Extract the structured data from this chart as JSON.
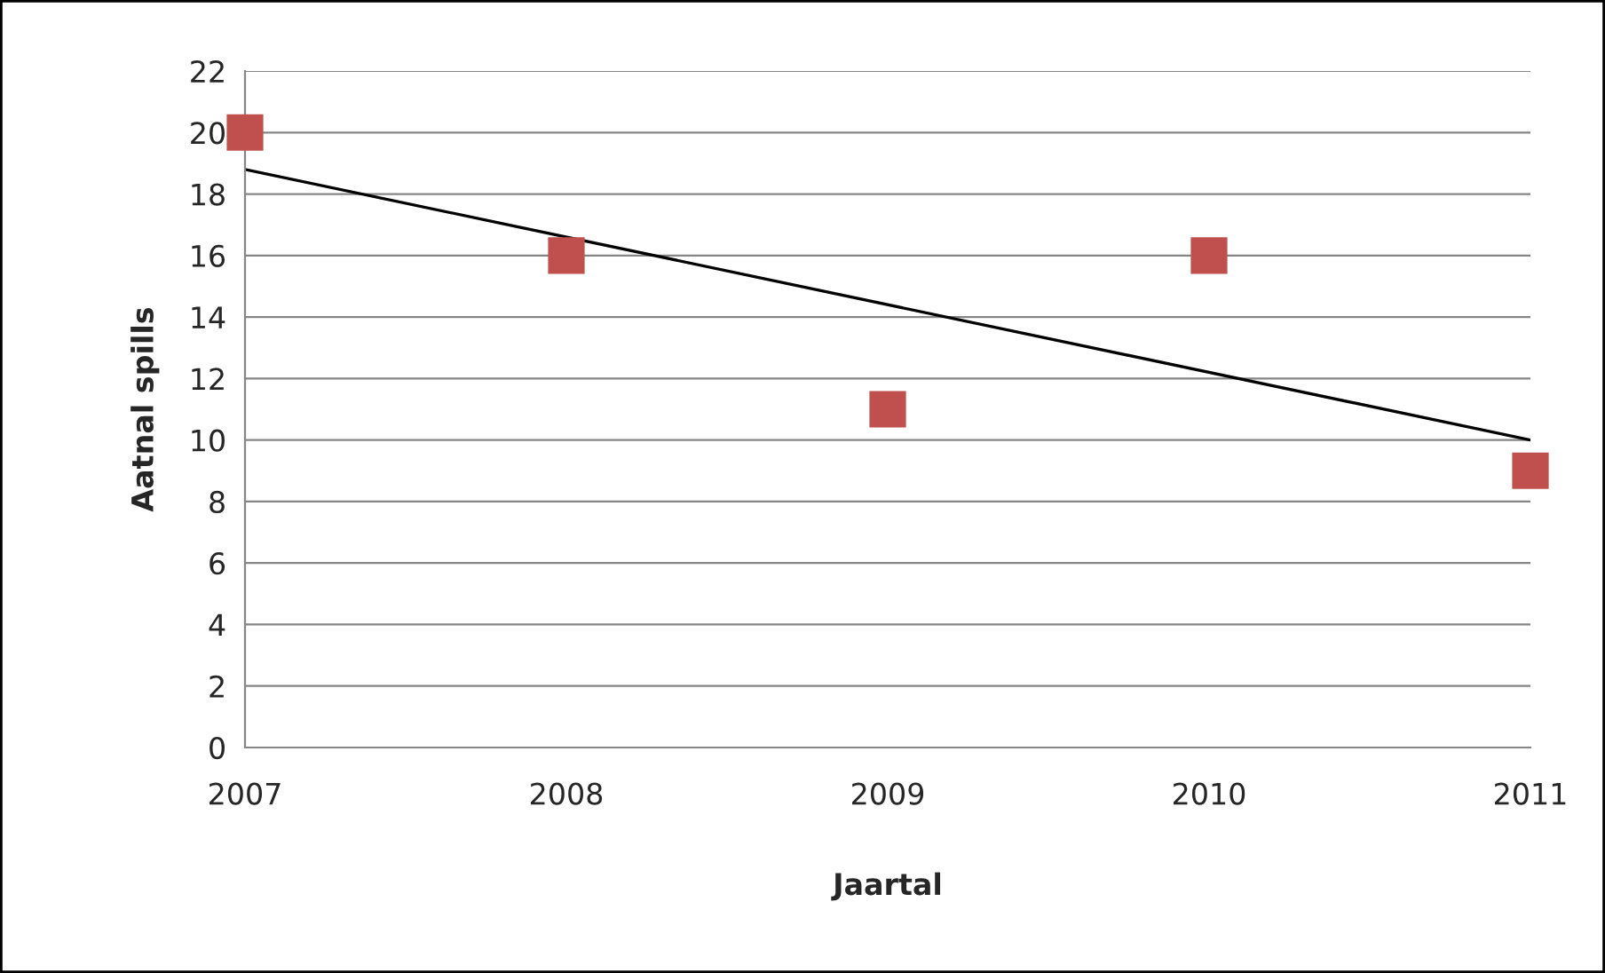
{
  "chart_data": {
    "type": "scatter",
    "xlabel": "Jaartal",
    "ylabel": "Aatnal spills",
    "x": [
      2007,
      2008,
      2009,
      2010,
      2011
    ],
    "series": [
      {
        "color": "#c0504d",
        "marker": "square",
        "values": [
          20,
          16,
          11,
          16,
          9
        ]
      },
      {
        "type": "line",
        "color": "#000000",
        "marker": "none",
        "line_style": "solid",
        "x": [
          2007,
          2011
        ],
        "values": [
          18.8,
          10.0
        ]
      }
    ],
    "xlim": [
      2007,
      2011
    ],
    "xticks": [
      2007,
      2008,
      2009,
      2010,
      2011
    ],
    "ylim": [
      0,
      22
    ],
    "yticks": [
      0,
      2,
      4,
      6,
      8,
      10,
      12,
      14,
      16,
      18,
      20,
      22
    ],
    "grid": "y",
    "legend": false
  }
}
